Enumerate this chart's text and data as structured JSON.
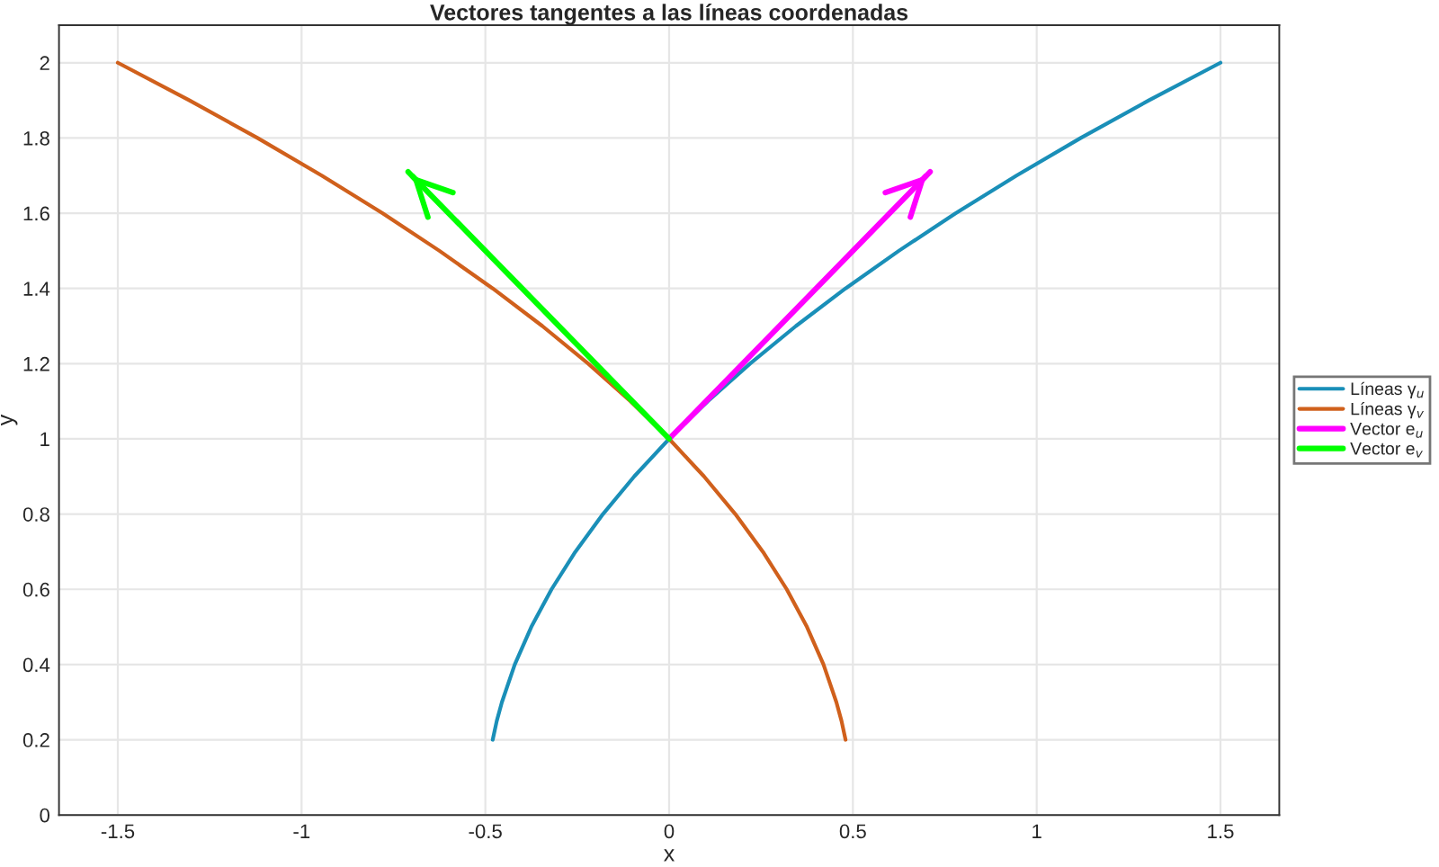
{
  "chart_data": {
    "type": "line",
    "title": "Vectores tangentes a las líneas coordenadas",
    "xlabel": "x",
    "ylabel": "y",
    "xlim": [
      -1.66,
      1.66
    ],
    "ylim": [
      0,
      2.1
    ],
    "xticks": [
      -1.5,
      -1,
      -0.5,
      0,
      0.5,
      1,
      1.5
    ],
    "yticks": [
      0,
      0.2,
      0.4,
      0.6,
      0.8,
      1,
      1.2,
      1.4,
      1.6,
      1.8,
      2
    ],
    "grid": true,
    "legend": "right",
    "series": [
      {
        "name": "Líneas γ$_{u}$",
        "color": "#1a8fb8",
        "x": [
          -0.48,
          -0.469,
          -0.455,
          -0.42,
          -0.375,
          -0.32,
          -0.255,
          -0.18,
          -0.095,
          0,
          0.105,
          0.22,
          0.345,
          0.48,
          0.625,
          0.78,
          0.945,
          1.12,
          1.305,
          1.5
        ],
        "values": [
          0.2,
          0.25,
          0.3,
          0.4,
          0.5,
          0.6,
          0.7,
          0.8,
          0.9,
          1.0,
          1.1,
          1.2,
          1.3,
          1.4,
          1.5,
          1.6,
          1.7,
          1.8,
          1.9,
          2.0
        ]
      },
      {
        "name": "Líneas γ$_{v}$",
        "color": "#d0601c",
        "x": [
          0.48,
          0.469,
          0.455,
          0.42,
          0.375,
          0.32,
          0.255,
          0.18,
          0.095,
          0,
          -0.105,
          -0.22,
          -0.345,
          -0.48,
          -0.625,
          -0.78,
          -0.945,
          -1.12,
          -1.305,
          -1.5
        ],
        "values": [
          0.2,
          0.25,
          0.3,
          0.4,
          0.5,
          0.6,
          0.7,
          0.8,
          0.9,
          1.0,
          1.1,
          1.2,
          1.3,
          1.4,
          1.5,
          1.6,
          1.7,
          1.8,
          1.9,
          2.0
        ]
      },
      {
        "name": "Vector e$_{u}$",
        "color": "#ff00ff",
        "x": [
          0,
          0.71
        ],
        "values": [
          1,
          1.71
        ]
      },
      {
        "name": "Vector e$_{v}$",
        "color": "#00ff00",
        "x": [
          0,
          -0.71
        ],
        "values": [
          1,
          1.71
        ]
      }
    ]
  }
}
